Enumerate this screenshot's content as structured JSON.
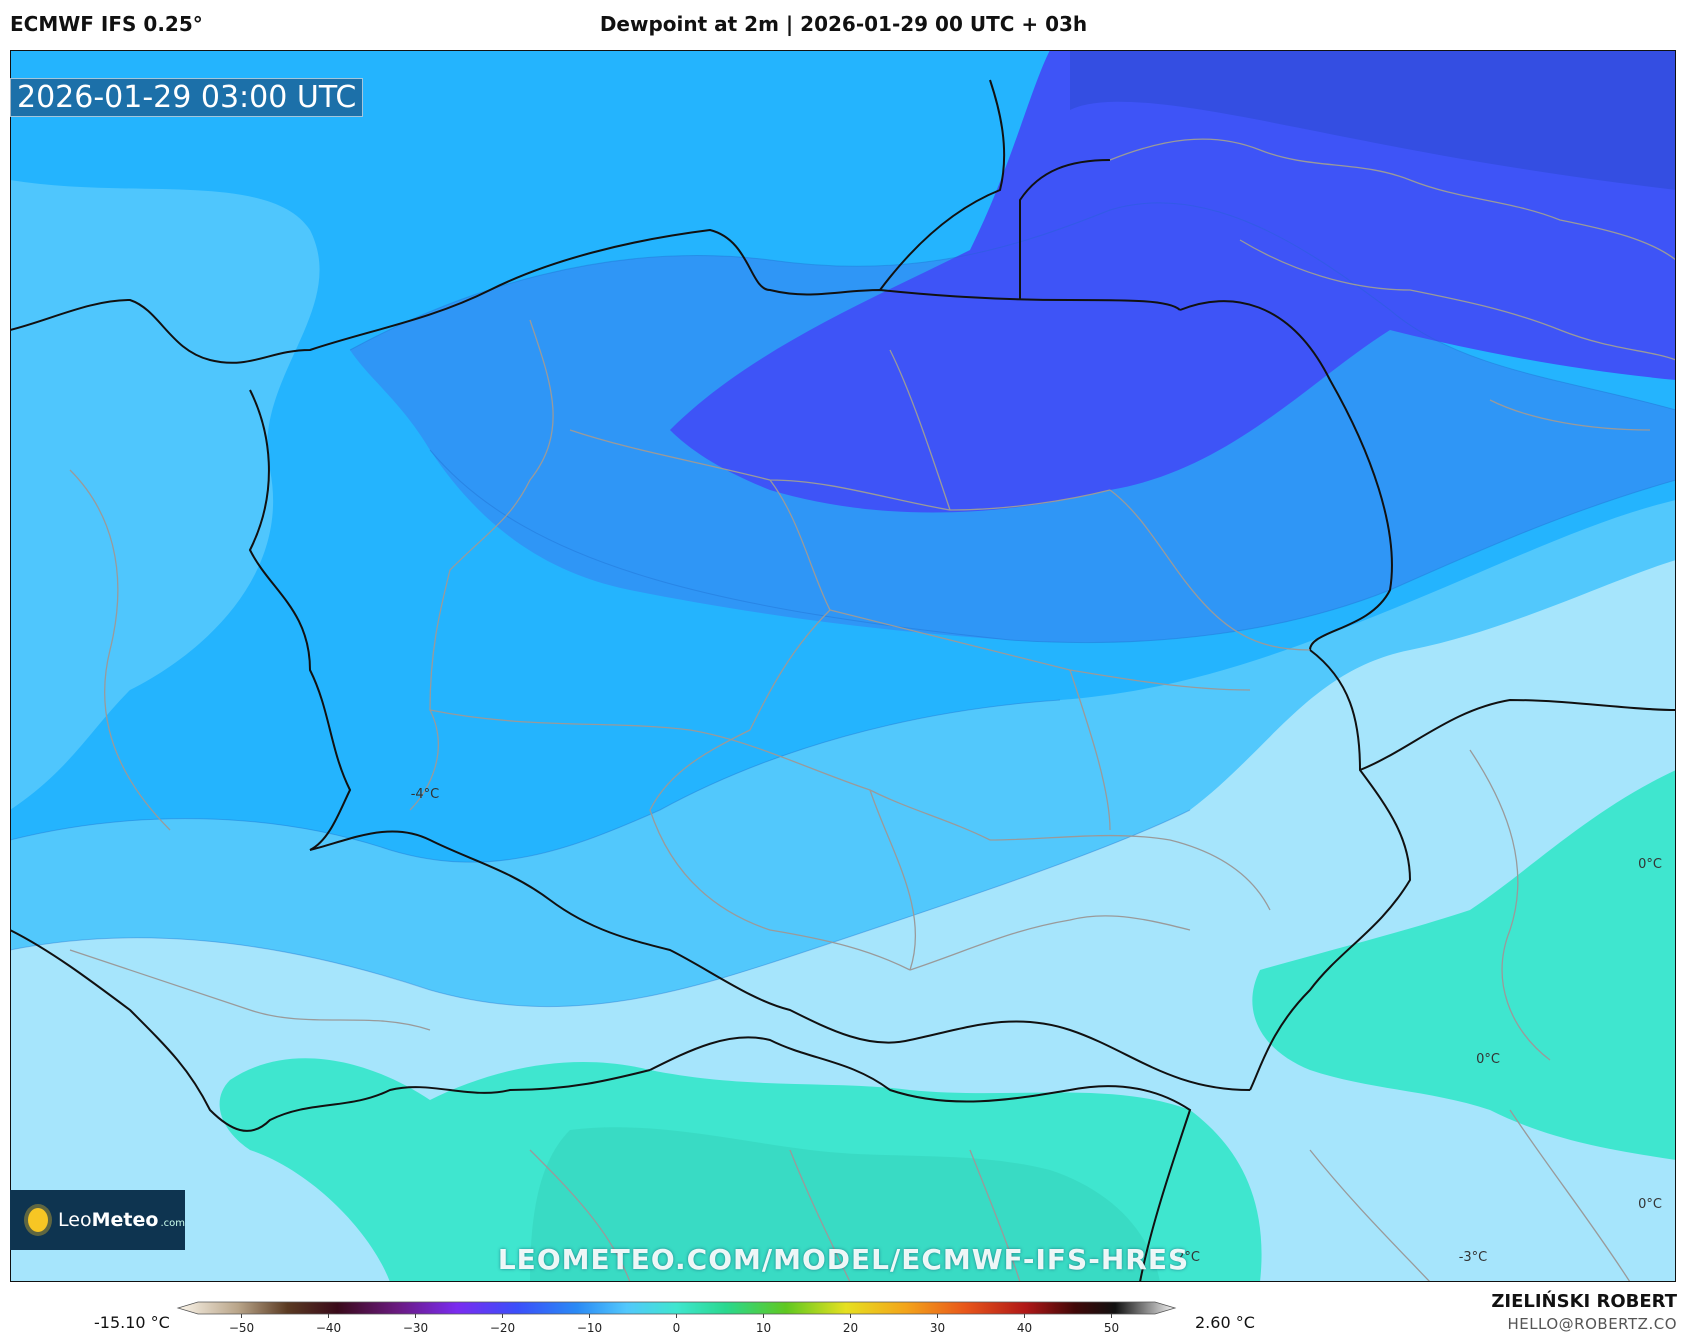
{
  "header": {
    "model": "ECMWF IFS 0.25°",
    "title": "Dewpoint at 2m | 2026-01-29 00 UTC + 03h"
  },
  "map": {
    "timestamp": "2026-01-29 03:00 UTC",
    "watermark": "LEOMETEO.COM/MODEL/ECMWF-IFS-HRES",
    "contour_labels": [
      {
        "text": "-4°C"
      },
      {
        "text": "0°C"
      },
      {
        "text": "0°C"
      },
      {
        "text": "0°C"
      },
      {
        "text": "2°C"
      },
      {
        "text": "-3°C"
      }
    ],
    "palette": {
      "deep_purple": "#3b4ffa",
      "blue": "#2a8af5",
      "sky": "#1fb6ff",
      "light_sky": "#52c8fc",
      "pale": "#a8e6fc",
      "teal": "#3fe8cc",
      "border_country": "#111111",
      "border_region": "#9a9a9a"
    }
  },
  "logo": {
    "brand_light": "Leo",
    "brand_bold": "Meteo",
    "domain": ".com"
  },
  "colorbar": {
    "min_label": "-15.10 °C",
    "max_label": "2.60 °C",
    "ticks": [
      "−50",
      "−40",
      "−30",
      "−20",
      "−10",
      "0",
      "10",
      "20",
      "30",
      "40",
      "50"
    ],
    "tick_values": [
      -50,
      -40,
      -30,
      -20,
      -10,
      0,
      10,
      20,
      30,
      40,
      50
    ],
    "range": [
      -55,
      55
    ]
  },
  "author": {
    "name": "ZIELIŃSKI ROBERT",
    "email": "HELLO@ROBERTZ.CO"
  }
}
